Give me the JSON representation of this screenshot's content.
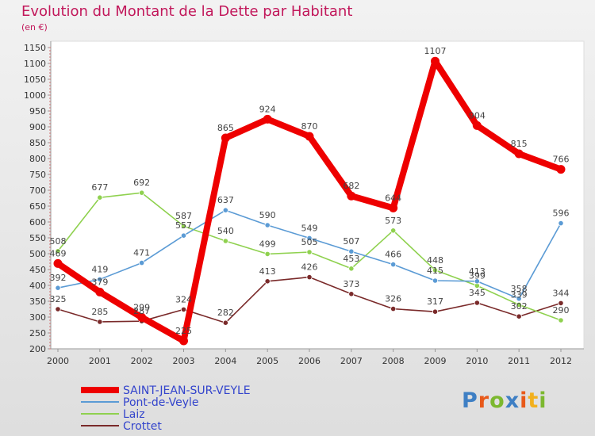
{
  "header": {
    "title": "Evolution du Montant de la Dette par Habitant",
    "unit": "(en €)"
  },
  "logo": {
    "text": "Proxiti"
  },
  "chart_data": {
    "type": "line",
    "title": "Evolution du Montant de la Dette par Habitant",
    "ylabel": "(en €)",
    "xlabel": "",
    "x": [
      "2000",
      "2001",
      "2002",
      "2003",
      "2004",
      "2005",
      "2006",
      "2007",
      "2008",
      "2009",
      "2010",
      "2011",
      "2012"
    ],
    "ylim": [
      200,
      1150
    ],
    "yticks": [
      200,
      250,
      300,
      350,
      400,
      450,
      500,
      550,
      600,
      650,
      700,
      750,
      800,
      850,
      900,
      950,
      1000,
      1050,
      1100,
      1150
    ],
    "grid": false,
    "legend_position": "bottom-left",
    "series": [
      {
        "name": "SAINT-JEAN-SUR-VEYLE",
        "color": "#ee0000",
        "values": [
          469,
          379,
          299,
          225,
          865,
          924,
          870,
          682,
          644,
          1107,
          904,
          815,
          766
        ]
      },
      {
        "name": "Pont-de-Veyle",
        "color": "#5b9bd5",
        "values": [
          392,
          419,
          471,
          557,
          637,
          590,
          549,
          507,
          466,
          415,
          413,
          358,
          596
        ]
      },
      {
        "name": "Laiz",
        "color": "#8fd14f",
        "values": [
          508,
          677,
          692,
          587,
          540,
          499,
          505,
          453,
          573,
          448,
          399,
          339,
          290
        ]
      },
      {
        "name": "Crottet",
        "color": "#7a2a2a",
        "values": [
          325,
          285,
          287,
          324,
          282,
          413,
          426,
          373,
          326,
          317,
          345,
          302,
          344
        ]
      }
    ]
  }
}
